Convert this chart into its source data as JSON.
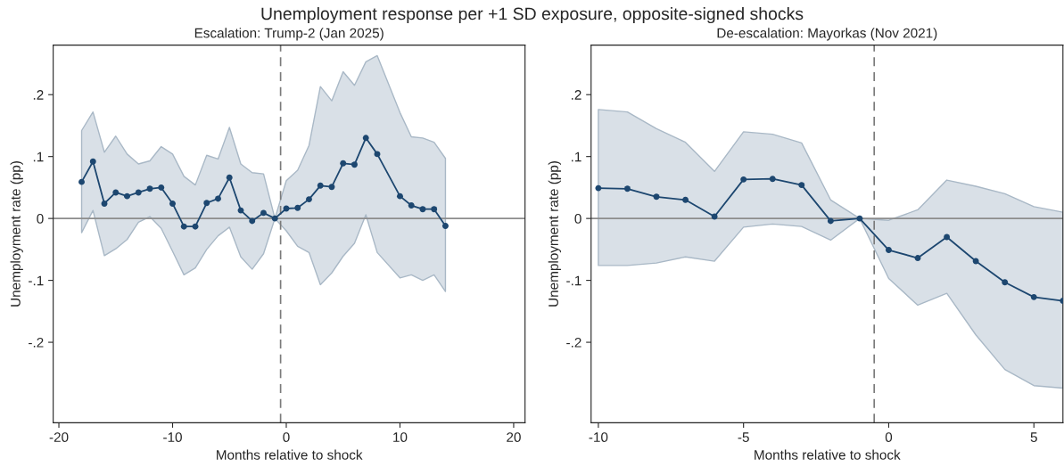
{
  "chart_data": [
    {
      "type": "line",
      "title": "Escalation: Trump-2 (Jan 2025)",
      "xlabel": "Months relative to shock",
      "ylabel": "Unemployment rate (pp)",
      "annotations": [
        "Unemployment response per +1 SD exposure, opposite-signed shocks"
      ],
      "x": [
        -18,
        -17,
        -16,
        -15,
        -14,
        -13,
        -12,
        -11,
        -10,
        -9,
        -8,
        -7,
        -6,
        -5,
        -4,
        -3,
        -2,
        -1,
        0,
        1,
        2,
        3,
        4,
        5,
        6,
        7,
        8,
        9,
        10,
        11,
        12,
        13,
        14
      ],
      "series": [
        {
          "color": "#1d4770",
          "values": [
            0.059,
            0.092,
            0.024,
            0.042,
            0.036,
            0.042,
            0.048,
            0.05,
            0.024,
            -0.013,
            -0.013,
            0.025,
            0.032,
            0.066,
            0.013,
            -0.004,
            0.009,
            0.0,
            0.016,
            0.017,
            0.031,
            0.053,
            0.051,
            0.089,
            0.087,
            0.13,
            0.104,
            null,
            0.036,
            0.021,
            0.015,
            0.015,
            -0.012
          ],
          "upper": [
            0.142,
            0.172,
            0.107,
            0.133,
            0.104,
            0.088,
            0.093,
            0.116,
            0.104,
            0.068,
            0.054,
            0.102,
            0.096,
            0.147,
            0.088,
            0.074,
            0.072,
            0.0,
            0.061,
            0.078,
            0.118,
            0.213,
            0.19,
            0.237,
            0.215,
            0.253,
            0.263,
            null,
            0.171,
            0.132,
            0.13,
            0.123,
            0.097
          ],
          "lower": [
            -0.023,
            0.013,
            -0.06,
            -0.049,
            -0.034,
            -0.006,
            0.003,
            -0.016,
            -0.053,
            -0.091,
            -0.08,
            -0.05,
            -0.028,
            -0.014,
            -0.062,
            -0.082,
            -0.057,
            0.0,
            -0.02,
            -0.045,
            -0.055,
            -0.107,
            -0.088,
            -0.061,
            -0.04,
            0.006,
            -0.055,
            null,
            -0.096,
            -0.091,
            -0.1,
            -0.091,
            -0.118
          ]
        }
      ],
      "marker": "circle",
      "line_style": "solid",
      "grid": false,
      "legend": false,
      "xlim": [
        -20.5,
        21
      ],
      "xticks": [
        -20,
        -10,
        0,
        10,
        20
      ],
      "ylim": [
        -0.33,
        0.28
      ],
      "yticks": [
        {
          "value": -0.2,
          "label": "-.2"
        },
        {
          "value": -0.1,
          "label": "-.1"
        },
        0,
        {
          "value": 0.1,
          "label": ".1"
        },
        {
          "value": 0.2,
          "label": ".2"
        }
      ],
      "ref_lines": [
        {
          "axis": "y",
          "value": 0,
          "color": "#8c8c8c",
          "line_style": "solid"
        },
        {
          "axis": "x",
          "value": -0.5,
          "color": "#7a7a7a",
          "line_style": "dashed"
        }
      ]
    },
    {
      "type": "line",
      "title": "De-escalation: Mayorkas (Nov 2021)",
      "xlabel": "Months relative to shock",
      "ylabel": "Unemployment rate (pp)",
      "x": [
        -10,
        -9,
        -8,
        -7,
        -6,
        -5,
        -4,
        -3,
        -2,
        -1,
        0,
        1,
        2,
        3,
        4,
        5,
        6
      ],
      "series": [
        {
          "color": "#1d4770",
          "values": [
            0.049,
            0.048,
            0.035,
            0.03,
            0.003,
            0.063,
            0.064,
            0.054,
            -0.004,
            0.0,
            -0.051,
            -0.064,
            -0.03,
            -0.069,
            -0.103,
            -0.127,
            -0.133
          ],
          "upper": [
            0.176,
            0.172,
            0.145,
            0.123,
            0.076,
            0.14,
            0.136,
            0.122,
            0.03,
            0.0,
            -0.003,
            0.014,
            0.062,
            0.052,
            0.04,
            0.019,
            0.01
          ],
          "lower": [
            -0.076,
            -0.076,
            -0.072,
            -0.062,
            -0.069,
            -0.014,
            -0.009,
            -0.013,
            -0.035,
            0.0,
            -0.097,
            -0.14,
            -0.121,
            -0.188,
            -0.244,
            -0.27,
            -0.274
          ]
        }
      ],
      "marker": "circle",
      "line_style": "solid",
      "grid": false,
      "legend": false,
      "xlim": [
        -10.25,
        6
      ],
      "xticks": [
        -10,
        -5,
        0,
        5
      ],
      "ylim": [
        -0.33,
        0.28
      ],
      "yticks": [
        {
          "value": -0.2,
          "label": "-.2"
        },
        {
          "value": -0.1,
          "label": "-.1"
        },
        0,
        {
          "value": 0.1,
          "label": ".1"
        },
        {
          "value": 0.2,
          "label": ".2"
        }
      ],
      "ref_lines": [
        {
          "axis": "y",
          "value": 0,
          "color": "#8c8c8c",
          "line_style": "solid"
        },
        {
          "axis": "x",
          "value": -0.5,
          "color": "#7a7a7a",
          "line_style": "dashed"
        }
      ]
    }
  ]
}
